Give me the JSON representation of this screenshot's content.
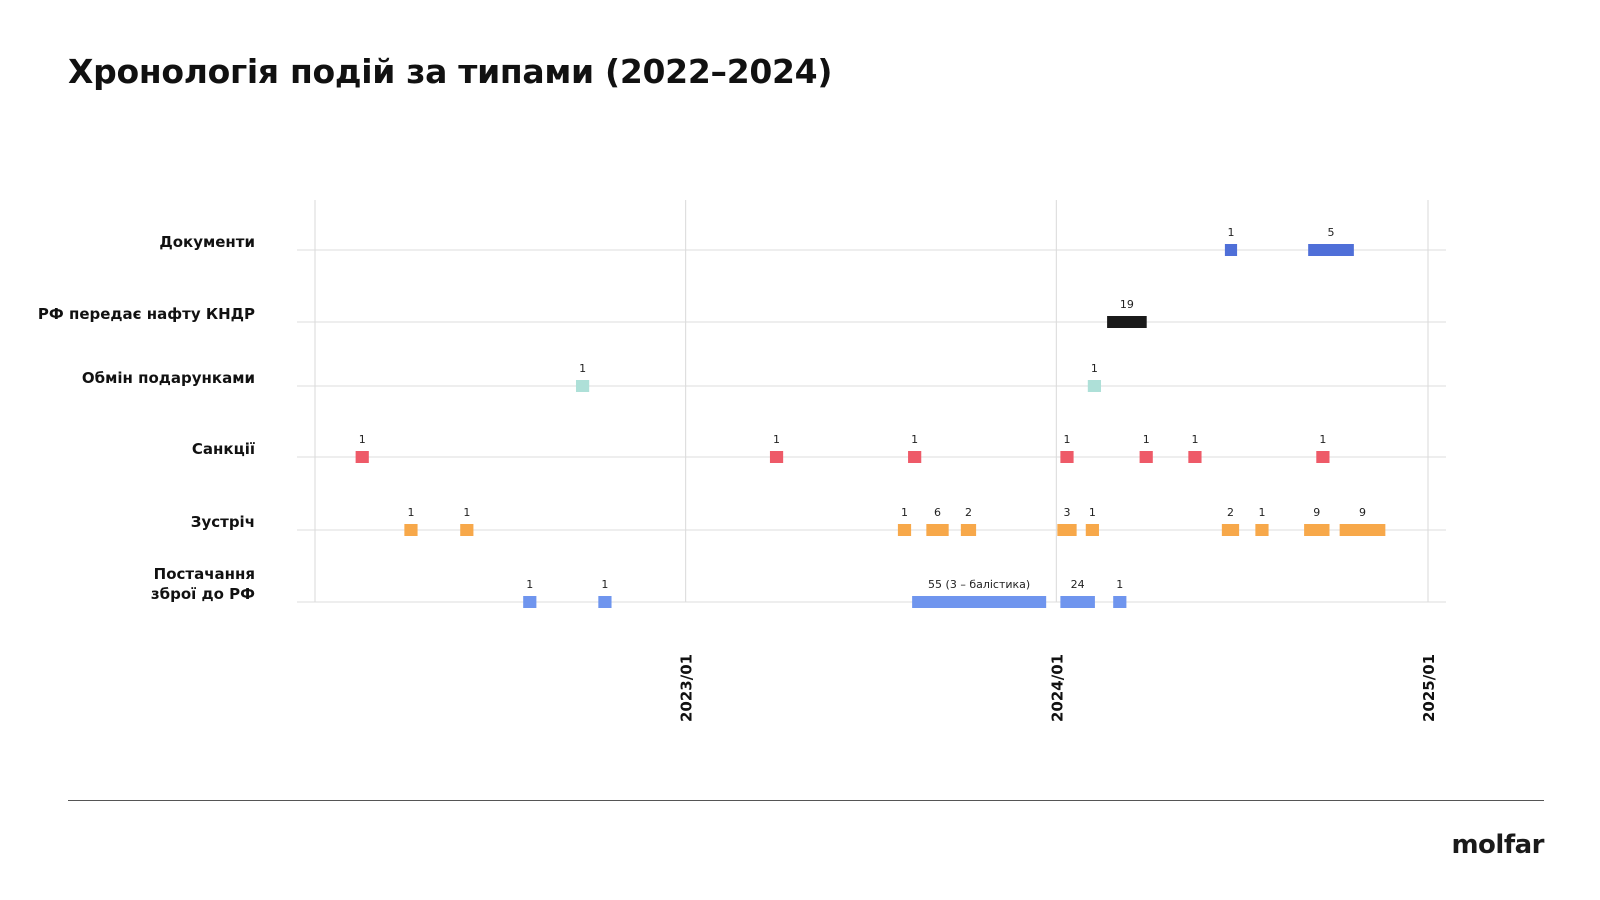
{
  "title": "Хронологія подій за типами (2022–2024)",
  "logo": "molfar",
  "chart_data": {
    "type": "timeline",
    "title": "Хронологія подій за типами (2022–2024)",
    "x_range": [
      "2022-01-01",
      "2025-01-01"
    ],
    "x_ticks": [
      {
        "date": "2023-01-01",
        "label": "2023/01"
      },
      {
        "date": "2024-01-01",
        "label": "2024/01"
      },
      {
        "date": "2025-01-01",
        "label": "2025/01"
      }
    ],
    "grid": true,
    "categories": [
      {
        "name": "Документи",
        "color": "#4f6fd8",
        "events": [
          {
            "start": "2024-06-15",
            "end": "2024-06-27",
            "value": "1"
          },
          {
            "start": "2024-09-05",
            "end": "2024-10-20",
            "value": "5"
          }
        ]
      },
      {
        "name": "РФ передає нафту КНДР",
        "color": "#1a1a1a",
        "events": [
          {
            "start": "2024-02-20",
            "end": "2024-03-30",
            "value": "19"
          }
        ]
      },
      {
        "name": "Обмін подарунками",
        "color": "#aee0d8",
        "events": [
          {
            "start": "2022-09-15",
            "end": "2022-09-28",
            "value": "1"
          },
          {
            "start": "2024-02-01",
            "end": "2024-02-14",
            "value": "1"
          }
        ]
      },
      {
        "name": "Санкції",
        "color": "#ee5a68",
        "events": [
          {
            "start": "2022-02-10",
            "end": "2022-02-23",
            "value": "1"
          },
          {
            "start": "2023-03-25",
            "end": "2023-04-07",
            "value": "1"
          },
          {
            "start": "2023-08-08",
            "end": "2023-08-21",
            "value": "1"
          },
          {
            "start": "2024-01-05",
            "end": "2024-01-18",
            "value": "1"
          },
          {
            "start": "2024-03-23",
            "end": "2024-04-05",
            "value": "1"
          },
          {
            "start": "2024-05-10",
            "end": "2024-05-23",
            "value": "1"
          },
          {
            "start": "2024-09-13",
            "end": "2024-09-26",
            "value": "1"
          }
        ]
      },
      {
        "name": "Зустріч",
        "color": "#f7a84a",
        "events": [
          {
            "start": "2022-03-30",
            "end": "2022-04-12",
            "value": "1"
          },
          {
            "start": "2022-05-24",
            "end": "2022-06-06",
            "value": "1"
          },
          {
            "start": "2023-07-29",
            "end": "2023-08-11",
            "value": "1"
          },
          {
            "start": "2023-08-26",
            "end": "2023-09-17",
            "value": "6"
          },
          {
            "start": "2023-09-29",
            "end": "2023-10-14",
            "value": "2"
          },
          {
            "start": "2024-01-02",
            "end": "2024-01-21",
            "value": "3"
          },
          {
            "start": "2024-01-30",
            "end": "2024-02-12",
            "value": "1"
          },
          {
            "start": "2024-06-12",
            "end": "2024-06-29",
            "value": "2"
          },
          {
            "start": "2024-07-15",
            "end": "2024-07-28",
            "value": "1"
          },
          {
            "start": "2024-09-01",
            "end": "2024-09-26",
            "value": "9"
          },
          {
            "start": "2024-10-06",
            "end": "2024-11-20",
            "value": "9"
          }
        ]
      },
      {
        "name": "Постачання\nзброї до РФ",
        "color": "#6f95ee",
        "events": [
          {
            "start": "2022-07-25",
            "end": "2022-08-07",
            "value": "1"
          },
          {
            "start": "2022-10-07",
            "end": "2022-10-20",
            "value": "1"
          },
          {
            "start": "2023-08-12",
            "end": "2023-12-22",
            "value": "55 (3 – балістика)"
          },
          {
            "start": "2024-01-05",
            "end": "2024-02-08",
            "value": "24"
          },
          {
            "start": "2024-02-26",
            "end": "2024-03-10",
            "value": "1"
          }
        ]
      }
    ]
  }
}
